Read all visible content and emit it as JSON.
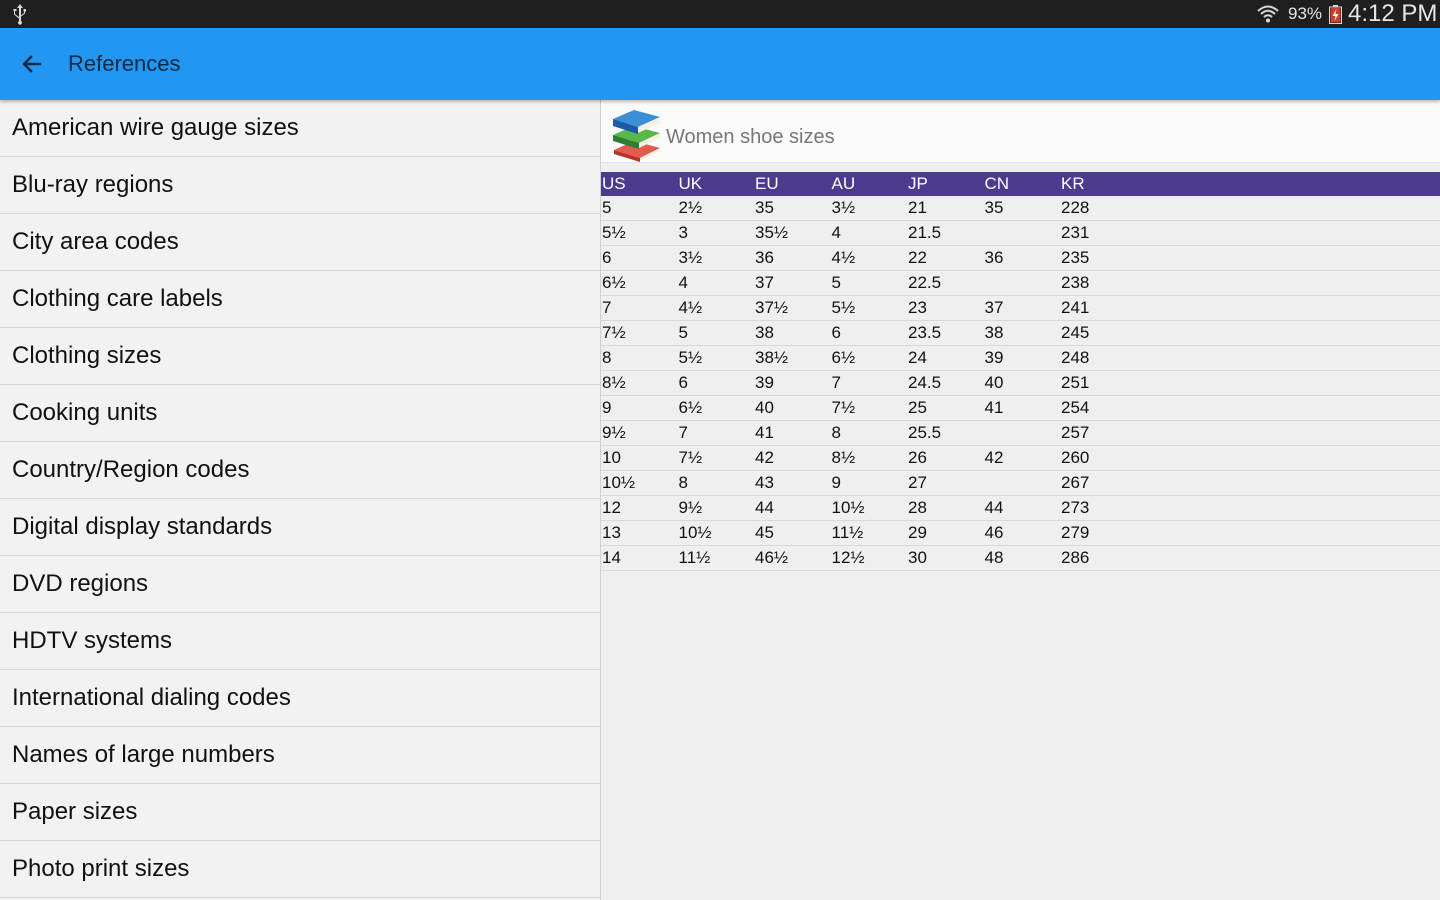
{
  "status_bar": {
    "battery_percent": "93%",
    "time": "4:12 PM",
    "icons": [
      "usb-icon",
      "wifi-icon",
      "battery-charging-icon"
    ]
  },
  "app_bar": {
    "title": "References",
    "back_icon": "arrow-back-icon",
    "color": "#2196f3"
  },
  "sidebar": {
    "items": [
      {
        "label": "American wire gauge sizes"
      },
      {
        "label": "Blu-ray regions"
      },
      {
        "label": "City area codes"
      },
      {
        "label": "Clothing care labels"
      },
      {
        "label": "Clothing sizes"
      },
      {
        "label": "Cooking units"
      },
      {
        "label": "Country/Region codes"
      },
      {
        "label": "Digital display standards"
      },
      {
        "label": "DVD regions"
      },
      {
        "label": "HDTV systems"
      },
      {
        "label": "International dialing codes"
      },
      {
        "label": "Names of large numbers"
      },
      {
        "label": "Paper sizes"
      },
      {
        "label": "Photo print sizes"
      }
    ]
  },
  "detail": {
    "title": "Women shoe sizes",
    "icon": "books-icon",
    "header_color": "#4b3a8e",
    "table": {
      "columns": [
        "US",
        "UK",
        "EU",
        "AU",
        "JP",
        "CN",
        "KR"
      ],
      "rows": [
        [
          "5",
          "2½",
          "35",
          "3½",
          "21",
          "35",
          "228"
        ],
        [
          "5½",
          "3",
          "35½",
          "4",
          "21.5",
          "",
          "231"
        ],
        [
          "6",
          "3½",
          "36",
          "4½",
          "22",
          "36",
          "235"
        ],
        [
          "6½",
          "4",
          "37",
          "5",
          "22.5",
          "",
          "238"
        ],
        [
          "7",
          "4½",
          "37½",
          "5½",
          "23",
          "37",
          "241"
        ],
        [
          "7½",
          "5",
          "38",
          "6",
          "23.5",
          "38",
          "245"
        ],
        [
          "8",
          "5½",
          "38½",
          "6½",
          "24",
          "39",
          "248"
        ],
        [
          "8½",
          "6",
          "39",
          "7",
          "24.5",
          "40",
          "251"
        ],
        [
          "9",
          "6½",
          "40",
          "7½",
          "25",
          "41",
          "254"
        ],
        [
          "9½",
          "7",
          "41",
          "8",
          "25.5",
          "",
          "257"
        ],
        [
          "10",
          "7½",
          "42",
          "8½",
          "26",
          "42",
          "260"
        ],
        [
          "10½",
          "8",
          "43",
          "9",
          "27",
          "",
          "267"
        ],
        [
          "12",
          "9½",
          "44",
          "10½",
          "28",
          "44",
          "273"
        ],
        [
          "13",
          "10½",
          "45",
          "11½",
          "29",
          "46",
          "279"
        ],
        [
          "14",
          "11½",
          "46½",
          "12½",
          "30",
          "48",
          "286"
        ]
      ]
    }
  }
}
